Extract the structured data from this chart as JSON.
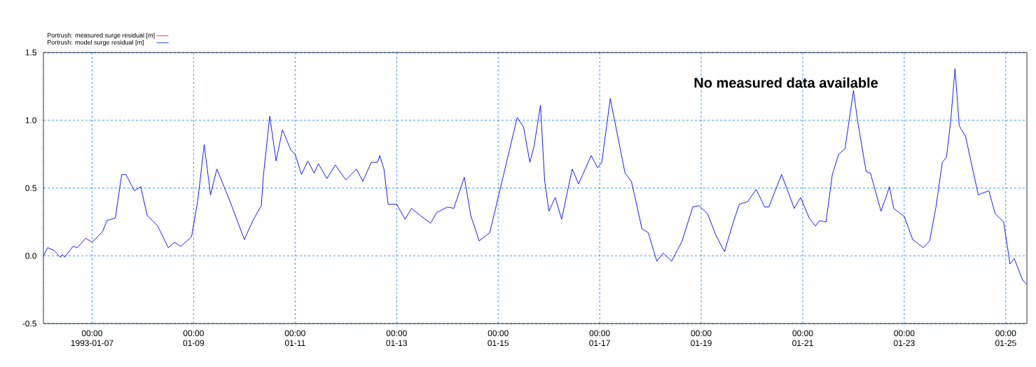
{
  "chart_data": {
    "type": "line",
    "xlim": [
      "1993-01-06T01:00",
      "1993-01-25T10:00"
    ],
    "xticks": [
      {
        "value": "1993-01-07T00:00",
        "label": "00:00 1993-01-07"
      },
      {
        "value": "1993-01-09T00:00",
        "label": "00:00 01-09"
      },
      {
        "value": "1993-01-11T00:00",
        "label": "00:00 01-11"
      },
      {
        "value": "1993-01-13T00:00",
        "label": "00:00 01-13"
      },
      {
        "value": "1993-01-15T00:00",
        "label": "00:00 01-15"
      },
      {
        "value": "1993-01-17T00:00",
        "label": "00:00 01-17"
      },
      {
        "value": "1993-01-19T00:00",
        "label": "00:00 01-19"
      },
      {
        "value": "1993-01-21T00:00",
        "label": "00:00 01-21"
      },
      {
        "value": "1993-01-23T00:00",
        "label": "00:00 01-23"
      },
      {
        "value": "1993-01-25T00:00",
        "label": "00:00 01-25"
      }
    ],
    "ylim": [
      -0.5,
      1.5
    ],
    "yticks": [
      -0.5,
      {
        "value": 0,
        "label": "0.0"
      },
      0.5,
      {
        "value": 1,
        "label": "1.0"
      },
      1.5
    ],
    "grid": true,
    "legend": "top left",
    "annotations": [
      "No measured data available"
    ],
    "series": [
      {
        "name": "Portrush: measured surge residual [m]",
        "color": "#ff0000"
      },
      {
        "name": "Portrush: model surge residual     [m]",
        "color": "#0000ff",
        "x": [
          "1993-01-06T01:00",
          "1993-01-06T03:00",
          "1993-01-06T06:00",
          "1993-01-06T09:00",
          "1993-01-06T10:00",
          "1993-01-06T11:00",
          "1993-01-06T15:00",
          "1993-01-06T17:00",
          "1993-01-06T21:00",
          "1993-01-07T00:00",
          "1993-01-07T05:00",
          "1993-01-07T07:00",
          "1993-01-07T11:00",
          "1993-01-07T14:00",
          "1993-01-07T16:00",
          "1993-01-07T20:00",
          "1993-01-07T23:00",
          "1993-01-08T02:00",
          "1993-01-08T07:00",
          "1993-01-08T12:00",
          "1993-01-08T15:00",
          "1993-01-08T18:00",
          "1993-01-08T23:00",
          "1993-01-09T02:00",
          "1993-01-09T05:00",
          "1993-01-09T08:00",
          "1993-01-09T11:00",
          "1993-01-09T17:00",
          "1993-01-10T00:00",
          "1993-01-10T04:00",
          "1993-01-10T08:00",
          "1993-01-10T09:00",
          "1993-01-10T12:00",
          "1993-01-10T15:00",
          "1993-01-10T18:00",
          "1993-01-10T22:00",
          "1993-01-11T00:00",
          "1993-01-11T03:00",
          "1993-01-11T06:00",
          "1993-01-11T09:00",
          "1993-01-11T11:00",
          "1993-01-11T15:00",
          "1993-01-11T19:00",
          "1993-01-12T00:00",
          "1993-01-12T05:00",
          "1993-01-12T08:00",
          "1993-01-12T12:00",
          "1993-01-12T15:00",
          "1993-01-12T16:00",
          "1993-01-12T18:00",
          "1993-01-12T20:00",
          "1993-01-13T00:00",
          "1993-01-13T04:00",
          "1993-01-13T07:00",
          "1993-01-13T11:00",
          "1993-01-13T16:00",
          "1993-01-13T19:00",
          "1993-01-14T00:00",
          "1993-01-14T03:00",
          "1993-01-14T08:00",
          "1993-01-14T11:00",
          "1993-01-14T15:00",
          "1993-01-14T20:00",
          "1993-01-15T00:00",
          "1993-01-15T09:00",
          "1993-01-15T12:00",
          "1993-01-15T15:00",
          "1993-01-15T17:00",
          "1993-01-15T20:00",
          "1993-01-15T22:00",
          "1993-01-16T00:00",
          "1993-01-16T03:00",
          "1993-01-16T06:00",
          "1993-01-16T11:00",
          "1993-01-16T14:00",
          "1993-01-16T20:00",
          "1993-01-16T23:00",
          "1993-01-17T01:00",
          "1993-01-17T05:00",
          "1993-01-17T12:00",
          "1993-01-17T15:00",
          "1993-01-17T20:00",
          "1993-01-17T23:00",
          "1993-01-18T03:00",
          "1993-01-18T06:00",
          "1993-01-18T10:00",
          "1993-01-18T15:00",
          "1993-01-18T20:00",
          "1993-01-18T23:00",
          "1993-01-19T03:00",
          "1993-01-19T07:00",
          "1993-01-19T11:00",
          "1993-01-19T15:00",
          "1993-01-19T18:00",
          "1993-01-19T22:00",
          "1993-01-20T02:00",
          "1993-01-20T06:00",
          "1993-01-20T08:00",
          "1993-01-20T14:00",
          "1993-01-20T20:00",
          "1993-01-20T23:00",
          "1993-01-21T03:00",
          "1993-01-21T06:00",
          "1993-01-21T08:00",
          "1993-01-21T11:00",
          "1993-01-21T14:00",
          "1993-01-21T17:00",
          "1993-01-21T20:00",
          "1993-01-22T00:00",
          "1993-01-22T02:00",
          "1993-01-22T06:00",
          "1993-01-22T08:00",
          "1993-01-22T13:00",
          "1993-01-22T16:00",
          "1993-01-22T17:00",
          "1993-01-22T19:00",
          "1993-01-23T00:00",
          "1993-01-23T04:00",
          "1993-01-23T09:00",
          "1993-01-23T12:00",
          "1993-01-23T15:00",
          "1993-01-23T18:00",
          "1993-01-23T20:00",
          "1993-01-23T22:00",
          "1993-01-24T00:00",
          "1993-01-24T02:00",
          "1993-01-24T05:00",
          "1993-01-24T11:00",
          "1993-01-24T16:00",
          "1993-01-24T19:00",
          "1993-01-24T23:00",
          "1993-01-25T02:00",
          "1993-01-25T04:00",
          "1993-01-25T08:00",
          "1993-01-25T10:00"
        ],
        "values": [
          0.0,
          0.06,
          0.04,
          -0.01,
          0.01,
          -0.01,
          0.07,
          0.06,
          0.13,
          0.1,
          0.18,
          0.26,
          0.28,
          0.6,
          0.6,
          0.48,
          0.51,
          0.3,
          0.22,
          0.06,
          0.1,
          0.07,
          0.14,
          0.41,
          0.82,
          0.45,
          0.64,
          0.41,
          0.12,
          0.26,
          0.37,
          0.59,
          1.03,
          0.7,
          0.93,
          0.78,
          0.75,
          0.6,
          0.7,
          0.61,
          0.68,
          0.57,
          0.67,
          0.56,
          0.64,
          0.55,
          0.69,
          0.69,
          0.74,
          0.64,
          0.38,
          0.38,
          0.27,
          0.35,
          0.3,
          0.24,
          0.32,
          0.36,
          0.35,
          0.58,
          0.3,
          0.11,
          0.17,
          0.43,
          1.02,
          0.95,
          0.69,
          0.81,
          1.11,
          0.55,
          0.33,
          0.43,
          0.27,
          0.64,
          0.53,
          0.74,
          0.65,
          0.69,
          1.16,
          0.61,
          0.55,
          0.2,
          0.17,
          -0.04,
          0.02,
          -0.04,
          0.11,
          0.36,
          0.37,
          0.31,
          0.15,
          0.03,
          0.24,
          0.38,
          0.4,
          0.49,
          0.36,
          0.36,
          0.6,
          0.35,
          0.43,
          0.28,
          0.22,
          0.26,
          0.25,
          0.6,
          0.75,
          0.79,
          1.22,
          0.99,
          0.62,
          0.61,
          0.33,
          0.46,
          0.51,
          0.35,
          0.29,
          0.12,
          0.06,
          0.11,
          0.36,
          0.69,
          0.73,
          1.0,
          1.38,
          0.96,
          0.88,
          0.45,
          0.48,
          0.31,
          0.25,
          -0.06,
          -0.02,
          -0.18,
          -0.21
        ]
      }
    ]
  }
}
